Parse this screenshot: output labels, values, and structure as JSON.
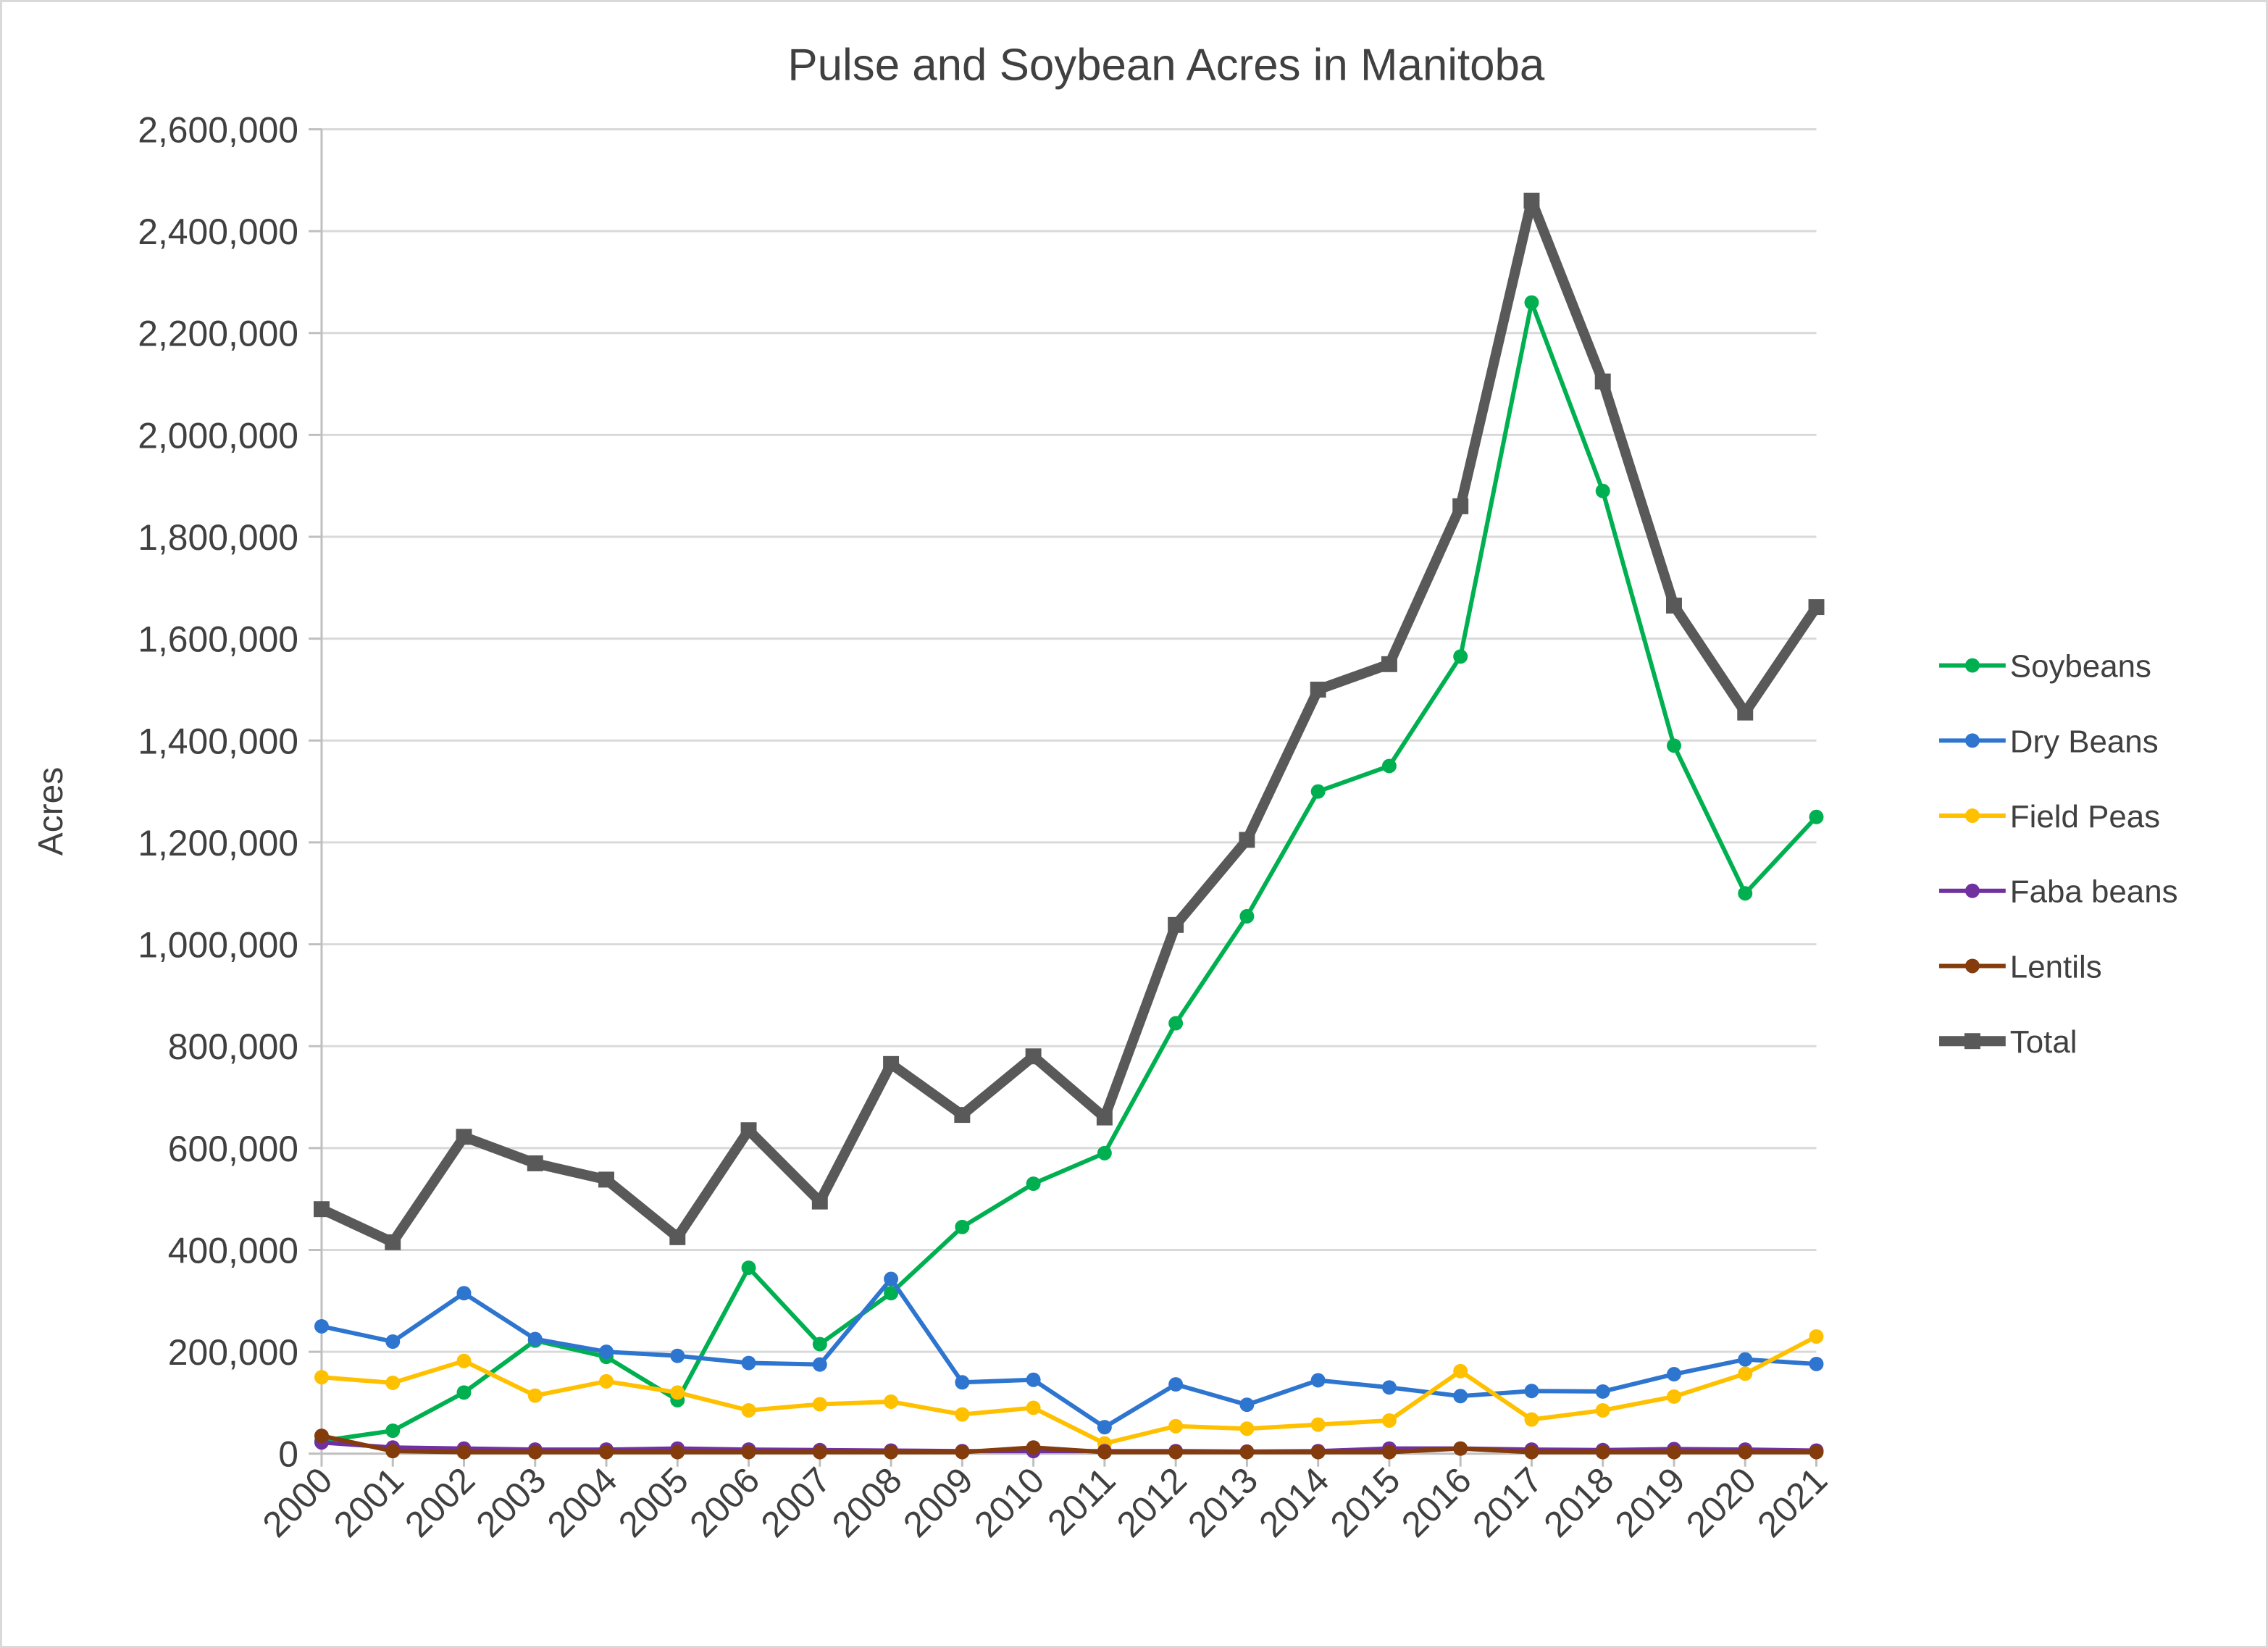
{
  "chart_data": {
    "type": "line",
    "title": "Pulse and Soybean Acres in Manitoba",
    "xlabel": "",
    "ylabel": "Acres",
    "ylim": [
      0,
      2600000
    ],
    "ytick_step": 200000,
    "grid": true,
    "legend_position": "right",
    "categories": [
      "2000",
      "2001",
      "2002",
      "2003",
      "2004",
      "2005",
      "2006",
      "2007",
      "2008",
      "2009",
      "2010",
      "2011",
      "2012",
      "2013",
      "2014",
      "2015",
      "2016",
      "2017",
      "2018",
      "2019",
      "2020",
      "2021"
    ],
    "series": [
      {
        "name": "Soybeans",
        "color": "#00B050",
        "marker": "circle",
        "values": [
          25000,
          45000,
          120000,
          222000,
          190000,
          105000,
          365000,
          215000,
          315000,
          445000,
          530000,
          590000,
          845000,
          1055000,
          1300000,
          1350000,
          1565000,
          2260000,
          1890000,
          1390000,
          1100000,
          1250000
        ]
      },
      {
        "name": "Dry Beans",
        "color": "#2E75CF",
        "marker": "circle",
        "values": [
          250000,
          220000,
          315000,
          225000,
          200000,
          192000,
          178000,
          175000,
          343000,
          140000,
          145000,
          52000,
          136000,
          96000,
          144000,
          130000,
          113000,
          123000,
          122000,
          156000,
          185000,
          176000
        ]
      },
      {
        "name": "Field Peas",
        "color": "#FFC000",
        "marker": "circle",
        "values": [
          150000,
          139000,
          182000,
          114000,
          142000,
          120000,
          85000,
          97000,
          102000,
          77000,
          90000,
          20000,
          54000,
          49000,
          57000,
          65000,
          162000,
          67000,
          85000,
          112000,
          157000,
          230000
        ]
      },
      {
        "name": "Faba beans",
        "color": "#7030A0",
        "marker": "circle",
        "values": [
          22000,
          12000,
          10000,
          8000,
          8000,
          10000,
          8000,
          7000,
          6000,
          5000,
          5000,
          5000,
          5000,
          4000,
          5000,
          10000,
          10000,
          8000,
          7000,
          9000,
          8000,
          6000
        ]
      },
      {
        "name": "Lentils",
        "color": "#843C0C",
        "marker": "circle",
        "values": [
          35000,
          5000,
          3000,
          3000,
          3000,
          3000,
          3000,
          3000,
          3000,
          3000,
          12000,
          3000,
          3000,
          3000,
          3000,
          3000,
          10000,
          3000,
          3000,
          3000,
          3000,
          3000
        ]
      },
      {
        "name": "Total",
        "color": "#595959",
        "marker": "square",
        "values": [
          480000,
          415000,
          622000,
          570000,
          538000,
          425000,
          635000,
          495000,
          765000,
          665000,
          780000,
          660000,
          1038000,
          1205000,
          1500000,
          1550000,
          1860000,
          2460000,
          2105000,
          1665000,
          1455000,
          1662000
        ]
      }
    ]
  }
}
